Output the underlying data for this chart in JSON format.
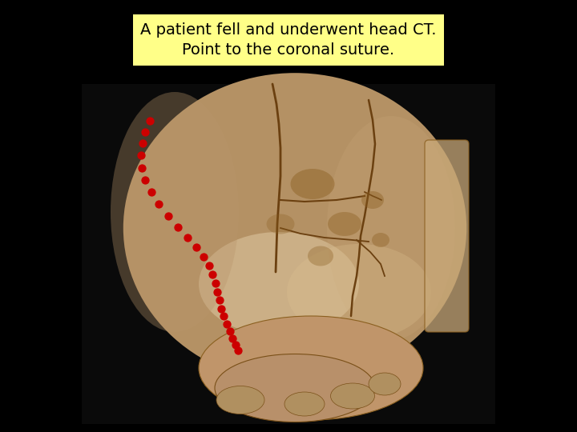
{
  "background_color": "#000000",
  "text_box_text_line1": "A patient fell and underwent head CT.",
  "text_box_text_line2": "Point to the coronal suture.",
  "text_box_bg": "#ffff88",
  "text_fontsize": 14,
  "text_color": "#000000",
  "dot_color": "#cc0000",
  "dot_size": 55,
  "dot_points_x": [
    0.26,
    0.252,
    0.247,
    0.244,
    0.246,
    0.252,
    0.262,
    0.275,
    0.291,
    0.308,
    0.325,
    0.34,
    0.353,
    0.362,
    0.368,
    0.373,
    0.377,
    0.38,
    0.384,
    0.388,
    0.393,
    0.398,
    0.403,
    0.408,
    0.413
  ],
  "dot_points_y": [
    0.72,
    0.695,
    0.668,
    0.64,
    0.612,
    0.584,
    0.556,
    0.528,
    0.5,
    0.474,
    0.45,
    0.428,
    0.406,
    0.385,
    0.364,
    0.344,
    0.324,
    0.305,
    0.286,
    0.268,
    0.25,
    0.233,
    0.217,
    0.202,
    0.188
  ]
}
